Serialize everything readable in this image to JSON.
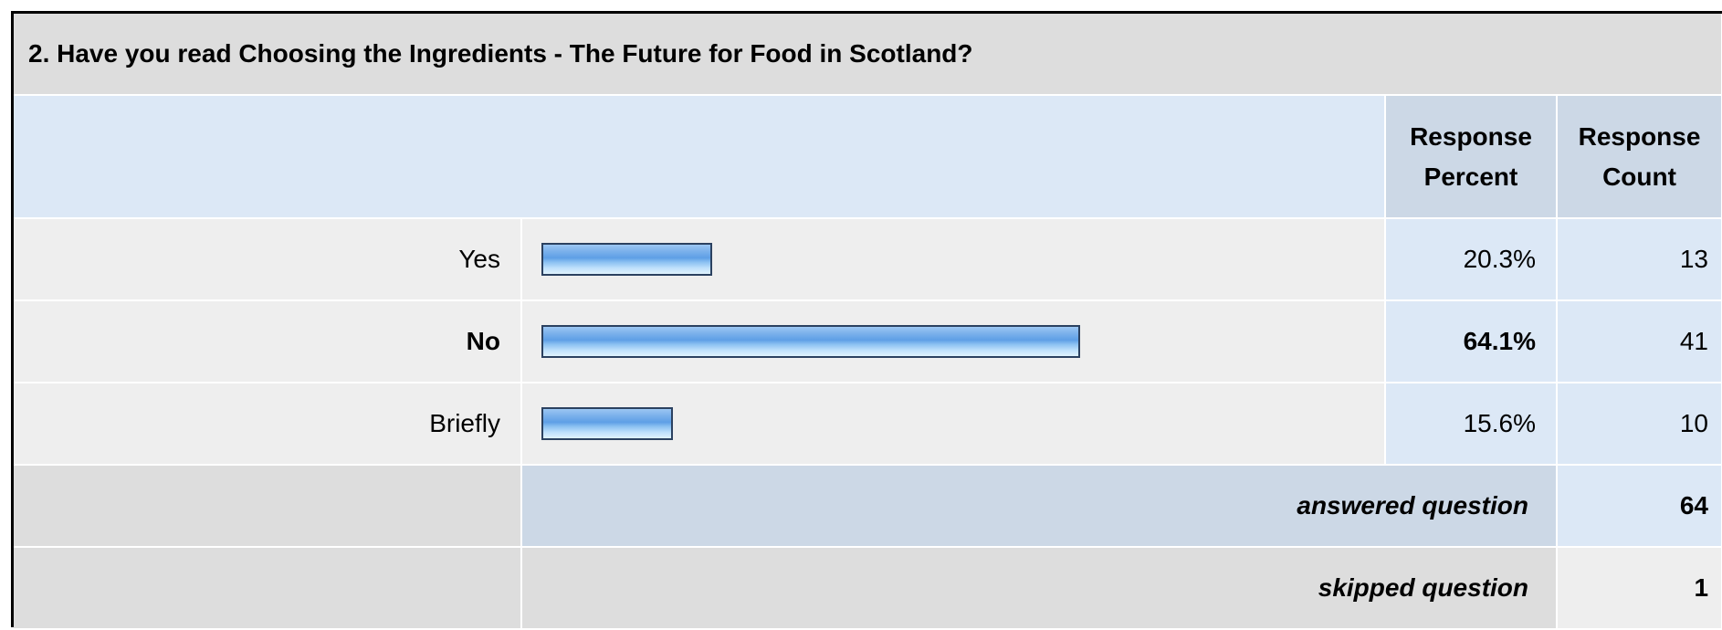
{
  "question": {
    "title": "2. Have you read Choosing the Ingredients - The Future for Food in Scotland?"
  },
  "headers": {
    "percent_line1": "Response",
    "percent_line2": "Percent",
    "count_line1": "Response",
    "count_line2": "Count"
  },
  "chart_data": {
    "type": "bar",
    "orientation": "horizontal",
    "categories": [
      "Yes",
      "No",
      "Briefly"
    ],
    "values": [
      20.3,
      64.1,
      15.6
    ],
    "value_labels": [
      "20.3%",
      "64.1%",
      "15.6%"
    ],
    "counts": [
      13,
      41,
      10
    ],
    "highlight_index": 1,
    "unit": "%",
    "xlim": [
      0,
      100
    ],
    "colors": {
      "bar_border": "#2b4160",
      "bar_light": "#dff3fd",
      "bar_dark": "#5e9fe6"
    }
  },
  "summary": {
    "answered_label": "answered question",
    "answered_value": "64",
    "skipped_label": "skipped question",
    "skipped_value": "1"
  }
}
